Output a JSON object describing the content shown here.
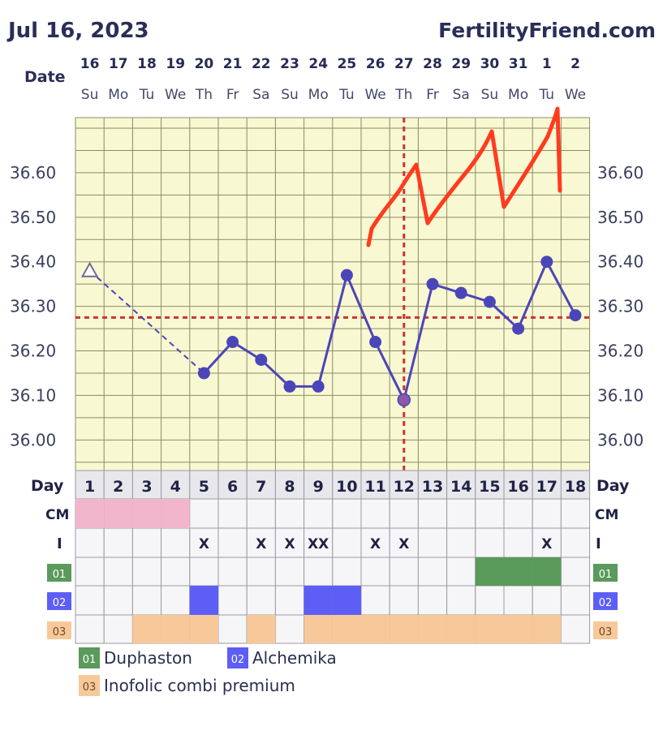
{
  "header": {
    "date": "Jul 16, 2023",
    "brand": "FertilityFriend.com"
  },
  "chart_data": {
    "type": "line",
    "date_label": "Date",
    "day_label": "Day",
    "dates": [
      "16",
      "17",
      "18",
      "19",
      "20",
      "21",
      "22",
      "23",
      "24",
      "25",
      "26",
      "27",
      "28",
      "29",
      "30",
      "31",
      "1",
      "2"
    ],
    "weekdays": [
      "Su",
      "Mo",
      "Tu",
      "We",
      "Th",
      "Fr",
      "Sa",
      "Su",
      "Mo",
      "Tu",
      "We",
      "Th",
      "Fr",
      "Sa",
      "Su",
      "Mo",
      "Tu",
      "We"
    ],
    "cycle_days": [
      "1",
      "2",
      "3",
      "4",
      "5",
      "6",
      "7",
      "8",
      "9",
      "10",
      "11",
      "12",
      "13",
      "14",
      "15",
      "16",
      "17",
      "18"
    ],
    "y_ticks": [
      "36.60",
      "36.50",
      "36.40",
      "36.30",
      "36.20",
      "36.10",
      "36.00"
    ],
    "ylim": [
      35.935,
      36.705
    ],
    "temps": [
      36.38,
      null,
      null,
      null,
      36.15,
      36.22,
      36.18,
      36.12,
      36.12,
      36.37,
      36.22,
      36.09,
      36.35,
      36.33,
      36.31,
      36.25,
      36.4,
      36.28
    ],
    "excluded_temp_day": 1,
    "coverline": 36.275,
    "ovulation_day": 12,
    "grid": true,
    "rows": {
      "cm_label": "CM",
      "i_label": "I",
      "cm_days": [
        1,
        2,
        3,
        4
      ],
      "intercourse": [
        "",
        "",
        "",
        "",
        "X",
        "",
        "X",
        "X",
        "XX",
        "",
        "X",
        "X",
        "",
        "",
        "",
        "",
        "X",
        ""
      ],
      "med_rows": [
        {
          "code": "01",
          "color": "#5a9a5a",
          "days": [
            15,
            16,
            17
          ]
        },
        {
          "code": "02",
          "color": "#5d5ef5",
          "days": [
            5,
            9,
            10
          ]
        },
        {
          "code": "03",
          "color": "#f7c99a",
          "days": [
            3,
            4,
            5,
            7,
            9,
            10,
            11,
            12,
            13,
            14,
            15,
            16,
            17
          ]
        }
      ]
    },
    "colors": {
      "line": "#4b46b8",
      "coverline": "#cc3333",
      "cm": "#f2b6cc",
      "grid": "#8c8c63",
      "plot_bg": "#f8f8d2",
      "annotation": "#ff3b1f"
    }
  },
  "legend": [
    {
      "code": "01",
      "label": "Duphaston",
      "color": "#5a9a5a"
    },
    {
      "code": "02",
      "label": "Alchemika",
      "color": "#5d5ef5"
    },
    {
      "code": "03",
      "label": "Inofolic combi premium",
      "color": "#f7c99a"
    }
  ]
}
